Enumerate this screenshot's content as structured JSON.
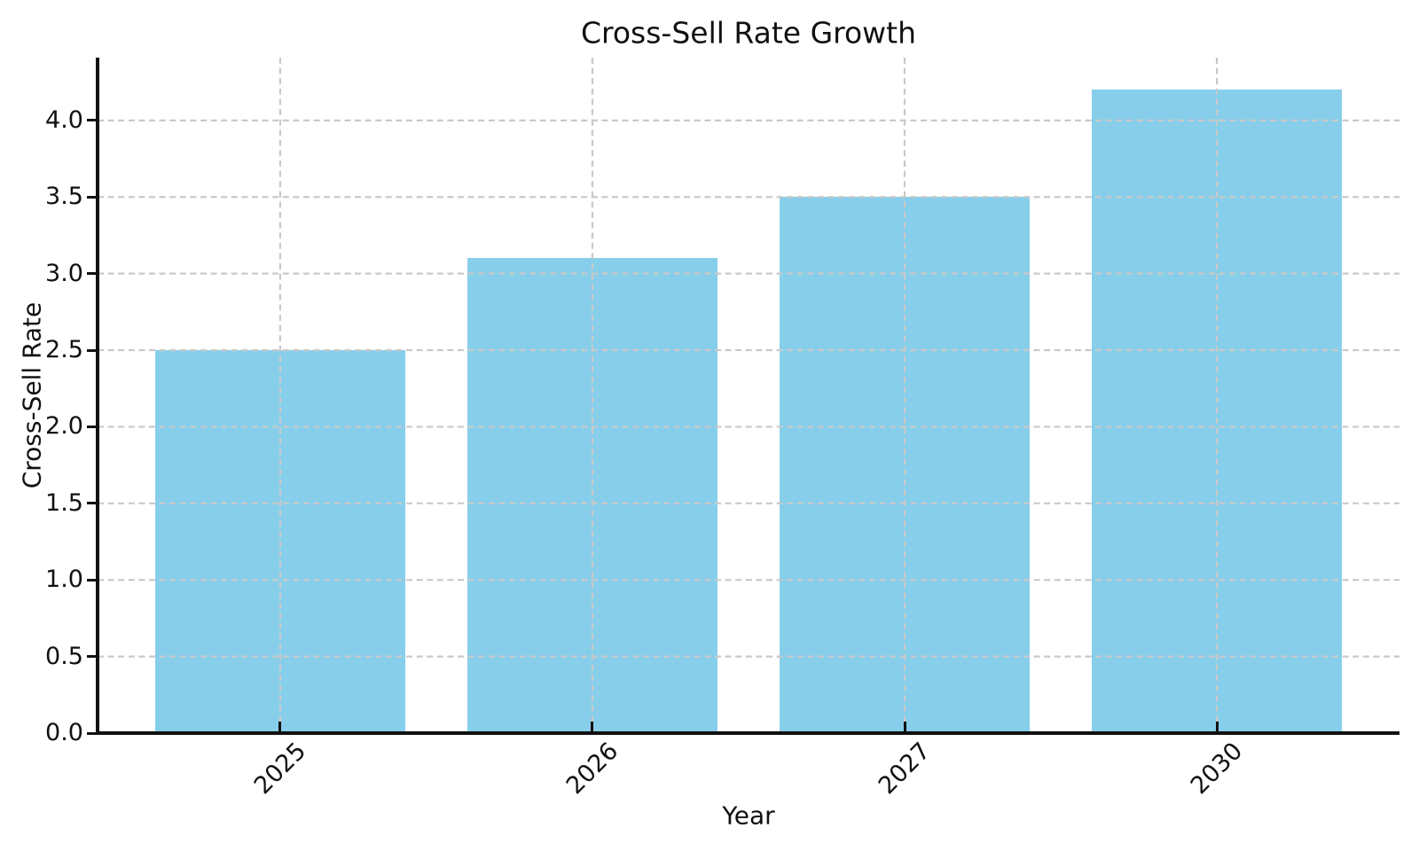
{
  "chart_data": {
    "type": "bar",
    "title": "Cross-Sell Rate Growth",
    "xlabel": "Year",
    "ylabel": "Cross-Sell Rate",
    "categories": [
      "2025",
      "2026",
      "2027",
      "2030"
    ],
    "values": [
      2.5,
      3.1,
      3.5,
      4.2
    ],
    "ylim": [
      0,
      4.41
    ],
    "yticks": [
      0.0,
      0.5,
      1.0,
      1.5,
      2.0,
      2.5,
      3.0,
      3.5,
      4.0
    ],
    "ytick_labels": [
      "0.0",
      "0.5",
      "1.0",
      "1.5",
      "2.0",
      "2.5",
      "3.0",
      "3.5",
      "4.0"
    ],
    "bar_color": "#87CEEB",
    "grid": true,
    "grid_style": "dashed",
    "grid_color": "#c9c9c9",
    "axis_color": "#111111",
    "text_color": "#111111",
    "background_color": "#ffffff",
    "x_tick_rotation_deg": 45,
    "legend": "none"
  }
}
